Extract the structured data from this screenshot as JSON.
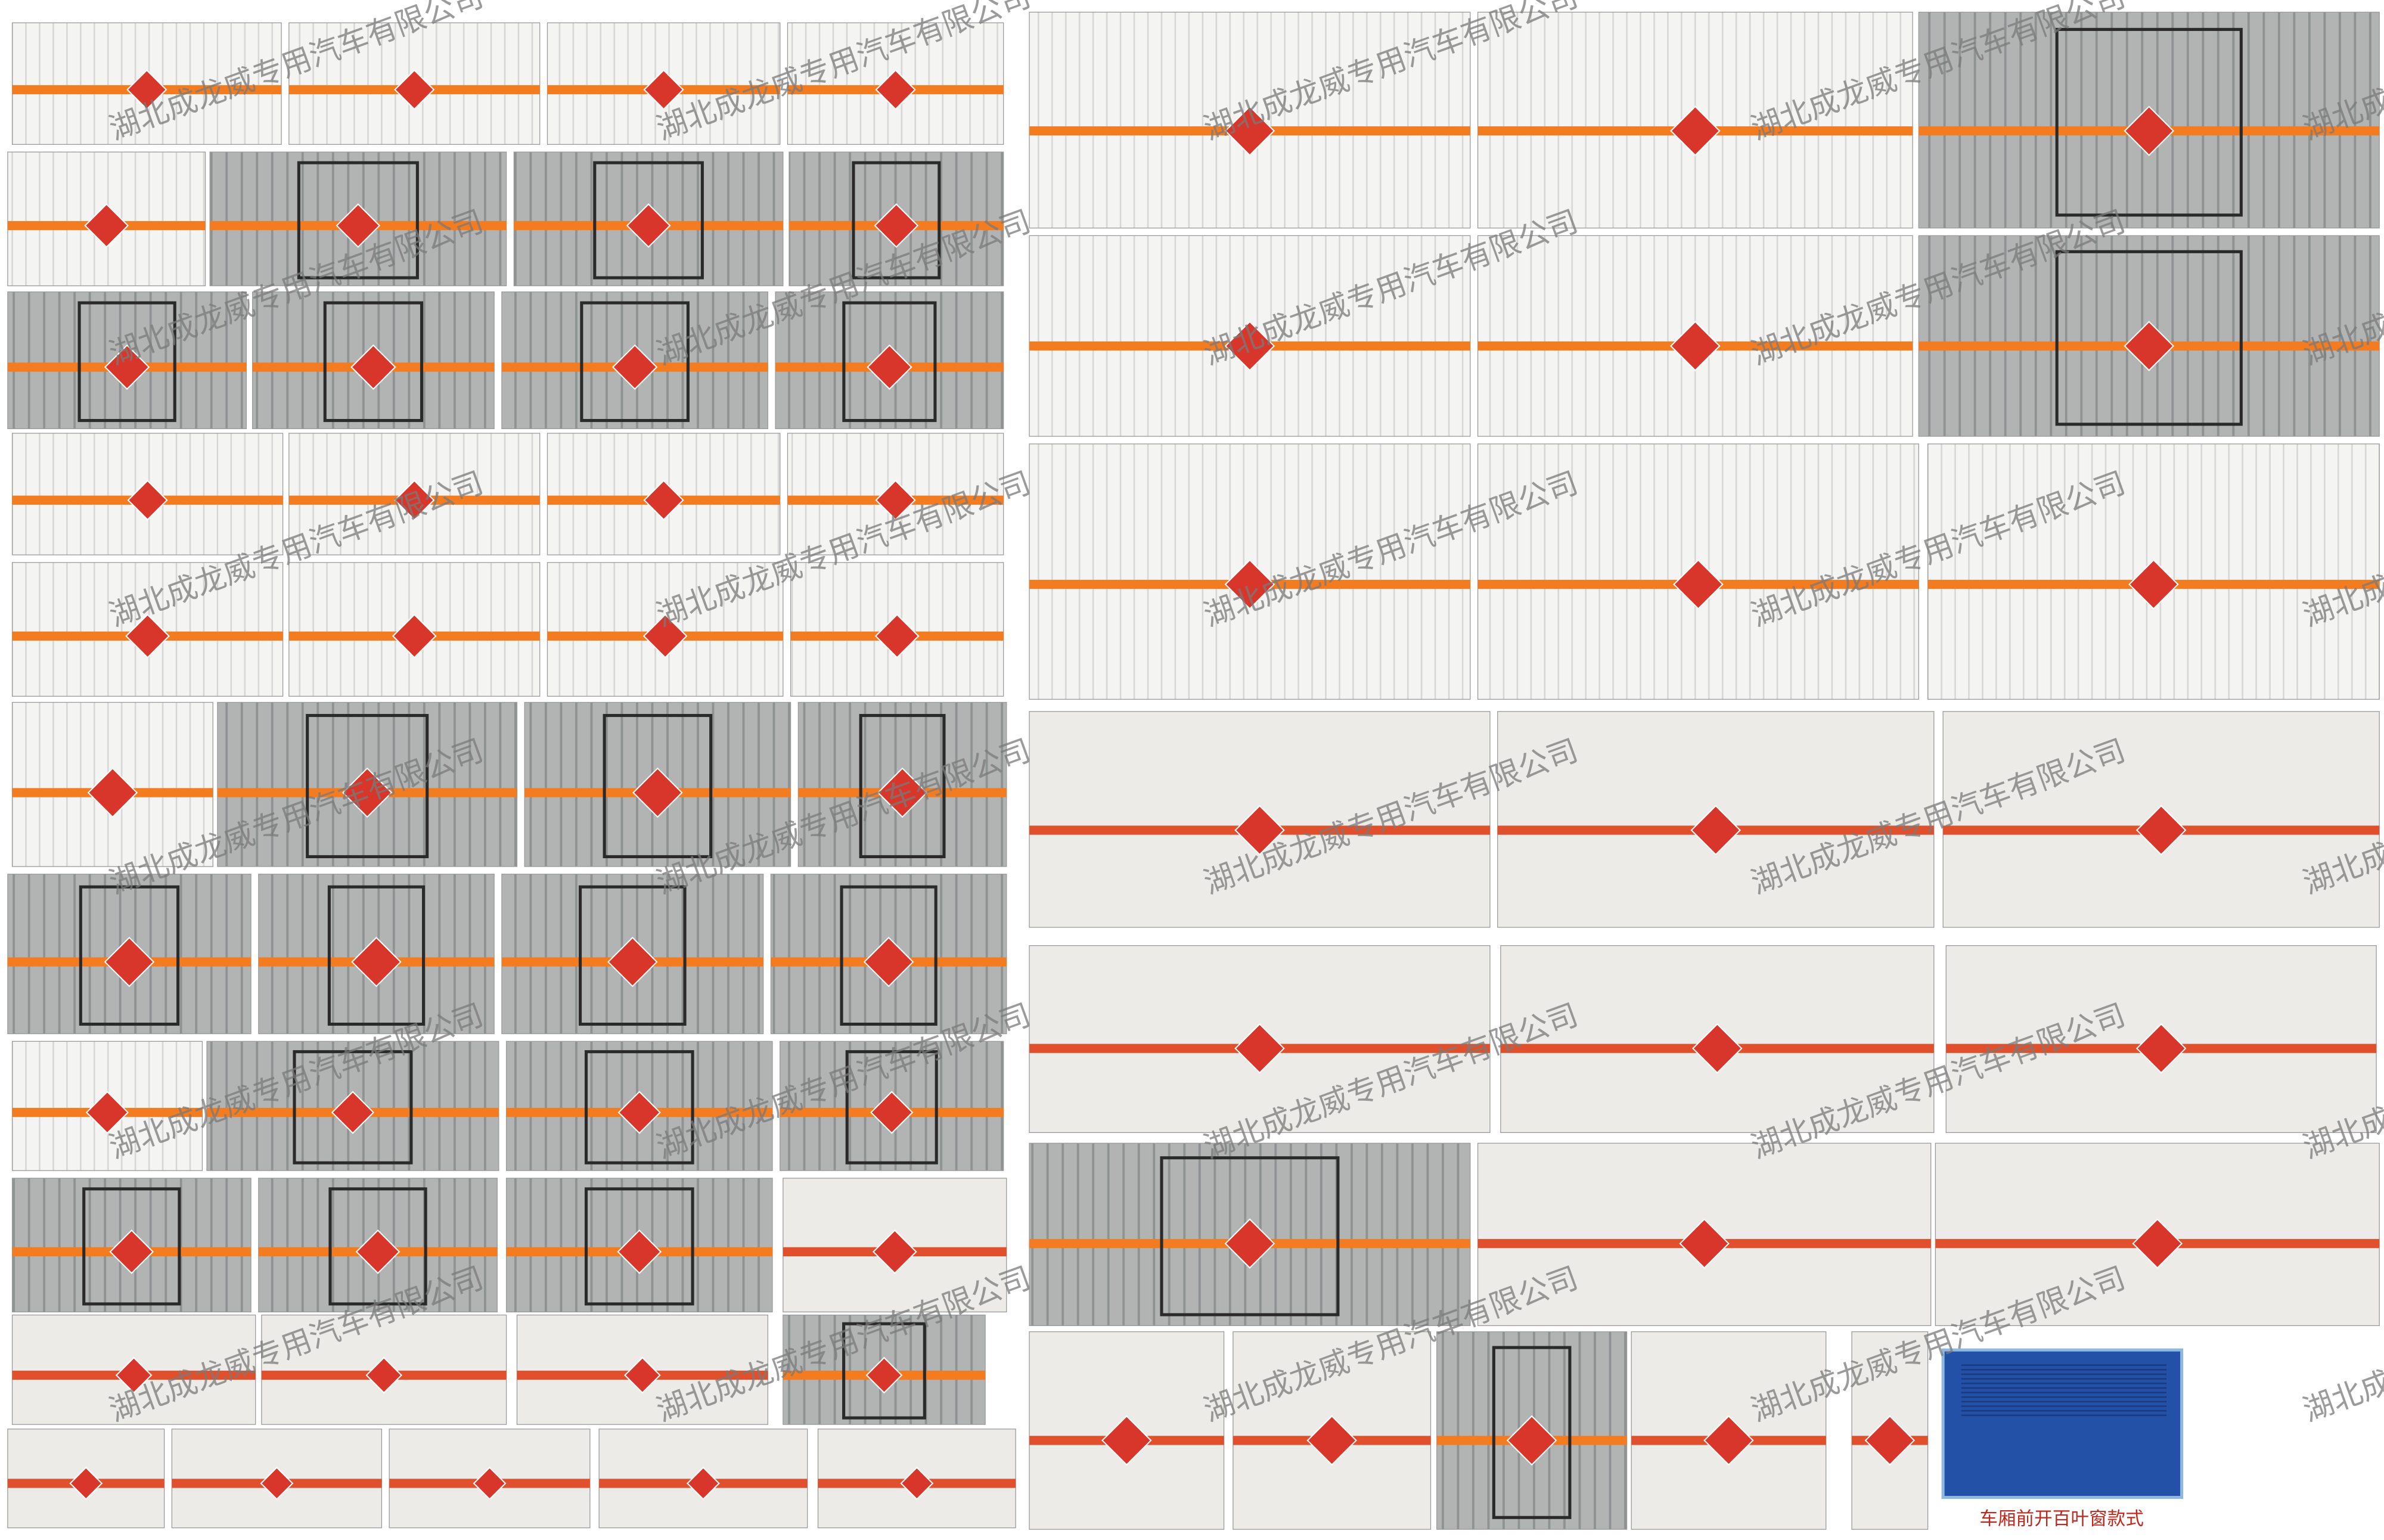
{
  "watermark": "湖北成龙威专用汽车有限公司",
  "caption": "车厢前开百叶窗款式"
}
